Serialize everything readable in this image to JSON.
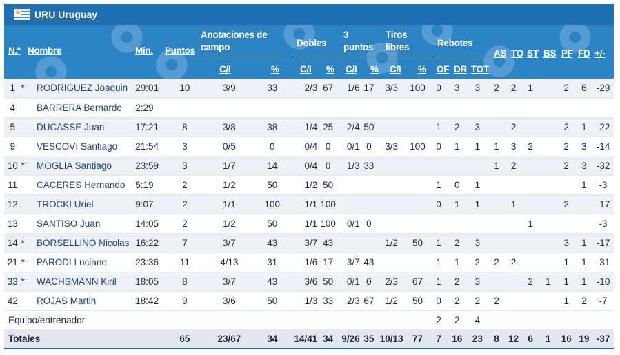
{
  "team": {
    "code": "URU",
    "name": "Uruguay"
  },
  "headers": {
    "no": "N.º",
    "name": "Nombre",
    "min": "Min.",
    "pts": "Puntos",
    "field_goals": "Anotaciones de campo",
    "doubles": "Dobles",
    "threes": "3 puntos",
    "free_throws": "Tiros libres",
    "rebounds": "Rebotes",
    "as": "AS",
    "to": "TO",
    "st": "ST",
    "bs": "BS",
    "pf": "PF",
    "fd": "FD",
    "pm": "+/-",
    "ci": "C/I",
    "pct": "%",
    "of": "OF",
    "dr": "DR",
    "tot": "TOT"
  },
  "players": [
    {
      "no": "1",
      "starter": "*",
      "name": "RODRIGUEZ Joaquin",
      "min": "29:01",
      "pts": "10",
      "fg": "3/9",
      "fgp": "33",
      "d": "2/3",
      "dp": "67",
      "t": "1/6",
      "tp": "17",
      "ft": "3/3",
      "ftp": "100",
      "of": "0",
      "dr": "3",
      "tot": "3",
      "as": "2",
      "to": "2",
      "st": "1",
      "bs": "",
      "pf": "2",
      "fd": "6",
      "pm": "-29"
    },
    {
      "no": "4",
      "starter": "",
      "name": "BARRERA Bernardo",
      "min": "2:29",
      "pts": "",
      "fg": "",
      "fgp": "",
      "d": "",
      "dp": "",
      "t": "",
      "tp": "",
      "ft": "",
      "ftp": "",
      "of": "",
      "dr": "",
      "tot": "",
      "as": "",
      "to": "",
      "st": "",
      "bs": "",
      "pf": "",
      "fd": "",
      "pm": ""
    },
    {
      "no": "5",
      "starter": "",
      "name": "DUCASSE Juan",
      "min": "17:21",
      "pts": "8",
      "fg": "3/8",
      "fgp": "38",
      "d": "1/4",
      "dp": "25",
      "t": "2/4",
      "tp": "50",
      "ft": "",
      "ftp": "",
      "of": "1",
      "dr": "2",
      "tot": "3",
      "as": "",
      "to": "2",
      "st": "",
      "bs": "",
      "pf": "2",
      "fd": "1",
      "pm": "-22"
    },
    {
      "no": "9",
      "starter": "",
      "name": "VESCOVI Santiago",
      "min": "21:54",
      "pts": "3",
      "fg": "0/5",
      "fgp": "0",
      "d": "0/4",
      "dp": "0",
      "t": "0/1",
      "tp": "0",
      "ft": "3/3",
      "ftp": "100",
      "of": "0",
      "dr": "1",
      "tot": "1",
      "as": "1",
      "to": "3",
      "st": "2",
      "bs": "",
      "pf": "2",
      "fd": "3",
      "pm": "-14"
    },
    {
      "no": "10",
      "starter": "*",
      "name": "MOGLIA Santiago",
      "min": "23:59",
      "pts": "3",
      "fg": "1/7",
      "fgp": "14",
      "d": "0/4",
      "dp": "0",
      "t": "1/3",
      "tp": "33",
      "ft": "",
      "ftp": "",
      "of": "",
      "dr": "",
      "tot": "",
      "as": "1",
      "to": "2",
      "st": "",
      "bs": "",
      "pf": "2",
      "fd": "3",
      "pm": "-32"
    },
    {
      "no": "11",
      "starter": "",
      "name": "CACERES Hernando",
      "min": "5:19",
      "pts": "2",
      "fg": "1/2",
      "fgp": "50",
      "d": "1/2",
      "dp": "50",
      "t": "",
      "tp": "",
      "ft": "",
      "ftp": "",
      "of": "1",
      "dr": "0",
      "tot": "1",
      "as": "",
      "to": "",
      "st": "",
      "bs": "",
      "pf": "",
      "fd": "1",
      "pm": "-3"
    },
    {
      "no": "12",
      "starter": "",
      "name": "TROCKI Uriel",
      "min": "9:07",
      "pts": "2",
      "fg": "1/1",
      "fgp": "100",
      "d": "1/1",
      "dp": "100",
      "t": "",
      "tp": "",
      "ft": "",
      "ftp": "",
      "of": "0",
      "dr": "1",
      "tot": "1",
      "as": "",
      "to": "1",
      "st": "",
      "bs": "",
      "pf": "2",
      "fd": "",
      "pm": "-17"
    },
    {
      "no": "13",
      "starter": "",
      "name": "SANTISO Juan",
      "min": "14:05",
      "pts": "2",
      "fg": "1/2",
      "fgp": "50",
      "d": "1/1",
      "dp": "100",
      "t": "0/1",
      "tp": "0",
      "ft": "",
      "ftp": "",
      "of": "",
      "dr": "",
      "tot": "",
      "as": "",
      "to": "",
      "st": "1",
      "bs": "",
      "pf": "",
      "fd": "",
      "pm": "-3"
    },
    {
      "no": "14",
      "starter": "*",
      "name": "BORSELLINO Nicolas",
      "min": "16:22",
      "pts": "7",
      "fg": "3/7",
      "fgp": "43",
      "d": "3/7",
      "dp": "43",
      "t": "",
      "tp": "",
      "ft": "1/2",
      "ftp": "50",
      "of": "1",
      "dr": "2",
      "tot": "3",
      "as": "",
      "to": "",
      "st": "",
      "bs": "",
      "pf": "3",
      "fd": "1",
      "pm": "-17"
    },
    {
      "no": "21",
      "starter": "*",
      "name": "PARODI Luciano",
      "min": "23:36",
      "pts": "11",
      "fg": "4/13",
      "fgp": "31",
      "d": "1/6",
      "dp": "17",
      "t": "3/7",
      "tp": "43",
      "ft": "",
      "ftp": "",
      "of": "1",
      "dr": "1",
      "tot": "2",
      "as": "2",
      "to": "2",
      "st": "",
      "bs": "",
      "pf": "1",
      "fd": "1",
      "pm": "-31"
    },
    {
      "no": "33",
      "starter": "*",
      "name": "WACHSMANN Kiril",
      "min": "18:05",
      "pts": "8",
      "fg": "3/7",
      "fgp": "43",
      "d": "3/6",
      "dp": "50",
      "t": "0/1",
      "tp": "0",
      "ft": "2/3",
      "ftp": "67",
      "of": "1",
      "dr": "2",
      "tot": "3",
      "as": "",
      "to": "",
      "st": "2",
      "bs": "1",
      "pf": "1",
      "fd": "1",
      "pm": "-10"
    },
    {
      "no": "42",
      "starter": "",
      "name": "ROJAS Martin",
      "min": "18:42",
      "pts": "9",
      "fg": "3/6",
      "fgp": "50",
      "d": "1/3",
      "dp": "33",
      "t": "2/3",
      "tp": "67",
      "ft": "1/2",
      "ftp": "50",
      "of": "0",
      "dr": "2",
      "tot": "2",
      "as": "2",
      "to": "",
      "st": "",
      "bs": "",
      "pf": "1",
      "fd": "2",
      "pm": "-7"
    }
  ],
  "team_row": {
    "label": "Equipo/entrenador",
    "of": "2",
    "dr": "2",
    "tot": "4"
  },
  "totals": {
    "label": "Totales",
    "pts": "65",
    "fg": "23/67",
    "fgp": "34",
    "d": "14/41",
    "dp": "34",
    "t": "9/26",
    "tp": "35",
    "ft": "10/13",
    "ftp": "77",
    "of": "7",
    "dr": "16",
    "tot": "23",
    "as": "8",
    "to": "12",
    "st": "6",
    "bs": "1",
    "pf": "16",
    "fd": "19",
    "pm": "-37"
  },
  "colors": {
    "team_bar": "#1f6fb2",
    "header": "#2d84c5",
    "name_link": "#1b3f8b"
  }
}
